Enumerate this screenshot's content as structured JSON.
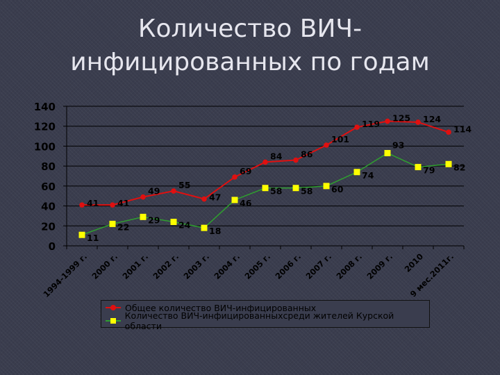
{
  "title_line1": "Количество ВИЧ-",
  "title_line2": "инфицированных по годам",
  "colors": {
    "series1": "#e01010",
    "series2": "#ffff00",
    "series2_line": "#2fa02f",
    "axis": "#000000"
  },
  "chart_data": {
    "type": "line",
    "title": "Количество ВИЧ-инфицированных по годам",
    "categories": [
      "1994-1999 г.",
      "2000 г.",
      "2001 г.",
      "2002 г.",
      "2003 г.",
      "2004 г.",
      "2005 г.",
      "2006 г.",
      "2007 г.",
      "2008 г.",
      "2009 г.",
      "2010",
      "9 мес.2011г."
    ],
    "series": [
      {
        "name": "Общее количество ВИЧ-инфицированных",
        "values": [
          41,
          41,
          49,
          55,
          47,
          69,
          84,
          86,
          101,
          119,
          125,
          124,
          114
        ]
      },
      {
        "name": "Количество ВИЧ-инфицированныхсреди жителей Курской области",
        "values": [
          11,
          22,
          29,
          24,
          18,
          46,
          58,
          58,
          60,
          74,
          93,
          79,
          82
        ]
      }
    ],
    "ylim": [
      0,
      140
    ],
    "yticks": [
      0,
      20,
      40,
      60,
      80,
      100,
      120,
      140
    ],
    "xlabel": "",
    "ylabel": "",
    "grid": "horizontal",
    "legend_position": "bottom"
  }
}
